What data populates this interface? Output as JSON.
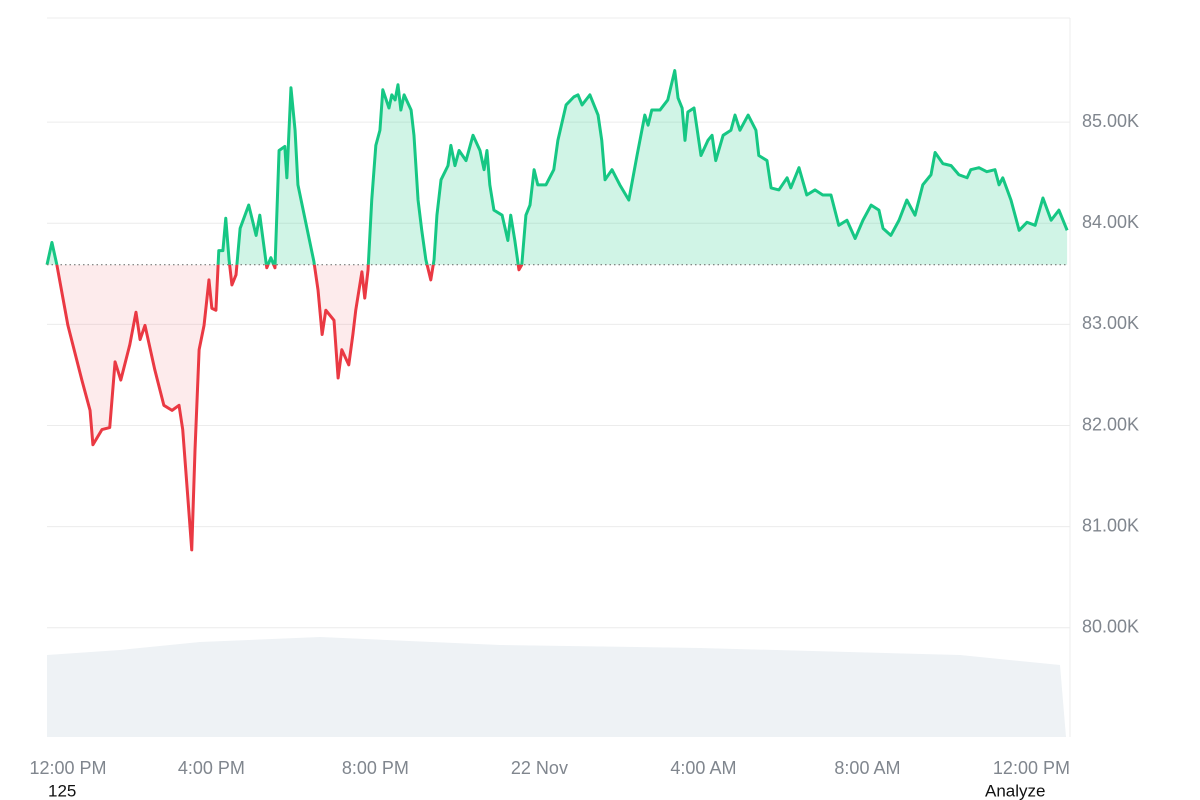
{
  "chart_data": {
    "type": "line",
    "x": [
      11.49,
      11.61,
      11.73,
      12.0,
      12.34,
      12.54,
      12.61,
      12.83,
      13.02,
      13.15,
      13.29,
      13.51,
      13.66,
      13.76,
      13.88,
      14.12,
      14.34,
      14.54,
      14.71,
      14.8,
      14.93,
      15.02,
      15.1,
      15.2,
      15.32,
      15.44,
      15.51,
      15.61,
      15.68,
      15.78,
      15.85,
      15.93,
      16.0,
      16.1,
      16.2,
      16.41,
      16.59,
      16.68,
      16.85,
      16.95,
      17.05,
      17.15,
      17.29,
      17.34,
      17.44,
      17.54,
      17.61,
      17.8,
      18.0,
      18.1,
      18.2,
      18.29,
      18.49,
      18.59,
      18.68,
      18.85,
      18.95,
      19.02,
      19.17,
      19.24,
      19.32,
      19.41,
      19.51,
      19.61,
      19.68,
      19.83,
      19.9,
      19.98,
      20.05,
      20.12,
      20.2,
      20.37,
      20.44,
      20.54,
      20.63,
      20.73,
      20.85,
      20.93,
      21.0,
      21.1,
      21.27,
      21.34,
      21.44,
      21.54,
      21.71,
      21.88,
      22.05,
      22.15,
      22.22,
      22.29,
      22.39,
      22.59,
      22.73,
      22.8,
      22.9,
      23.0,
      23.07,
      23.17,
      23.27,
      23.37,
      23.46,
      23.66,
      23.85,
      23.95,
      24.15,
      24.34,
      24.44,
      24.54,
      24.73,
      24.93,
      25.02,
      25.1,
      25.27,
      25.46,
      25.68,
      25.88,
      26.07,
      26.15,
      26.24,
      26.44,
      26.63,
      26.8,
      26.88,
      26.98,
      27.05,
      27.12,
      27.27,
      27.44,
      27.61,
      27.71,
      27.8,
      27.98,
      28.17,
      28.27,
      28.39,
      28.59,
      28.78,
      28.85,
      29.05,
      29.15,
      29.34,
      29.54,
      29.63,
      29.83,
      30.02,
      30.22,
      30.41,
      30.61,
      30.8,
      31.0,
      31.2,
      31.39,
      31.59,
      31.78,
      31.88,
      32.07,
      32.27,
      32.46,
      32.66,
      32.85,
      33.05,
      33.15,
      33.34,
      33.54,
      33.73,
      33.93,
      34.02,
      34.22,
      34.41,
      34.61,
      34.71,
      34.8,
      35.0,
      35.2,
      35.39,
      35.59,
      35.78,
      35.98,
      36.17,
      36.37
    ],
    "values": [
      83590,
      83810,
      83590,
      82990,
      82450,
      82150,
      81810,
      81960,
      81980,
      82630,
      82450,
      82800,
      83120,
      82850,
      82990,
      82550,
      82200,
      82150,
      82200,
      81960,
      81260,
      80770,
      81760,
      82750,
      82990,
      83440,
      83160,
      83140,
      83730,
      83730,
      84050,
      83640,
      83390,
      83490,
      83950,
      84180,
      83880,
      84080,
      83560,
      83660,
      83560,
      84720,
      84760,
      84450,
      85340,
      84920,
      84380,
      84010,
      83620,
      83340,
      82900,
      83140,
      83040,
      82470,
      82750,
      82600,
      82900,
      83140,
      83520,
      83260,
      83540,
      84230,
      84770,
      84920,
      85320,
      85140,
      85270,
      85220,
      85370,
      85120,
      85270,
      85120,
      84870,
      84230,
      83930,
      83640,
      83440,
      83640,
      84080,
      84430,
      84570,
      84770,
      84570,
      84720,
      84620,
      84870,
      84720,
      84530,
      84720,
      84380,
      84130,
      84080,
      83830,
      84080,
      83830,
      83540,
      83590,
      84080,
      84180,
      84530,
      84380,
      84380,
      84530,
      84820,
      85170,
      85250,
      85270,
      85170,
      85270,
      85070,
      84820,
      84430,
      84530,
      84380,
      84230,
      84670,
      85070,
      84970,
      85120,
      85120,
      85220,
      85510,
      85240,
      85140,
      84820,
      85100,
      85140,
      84670,
      84820,
      84870,
      84620,
      84870,
      84920,
      85070,
      84920,
      85070,
      84920,
      84670,
      84620,
      84350,
      84330,
      84450,
      84350,
      84550,
      84280,
      84330,
      84280,
      84280,
      83980,
      84030,
      83850,
      84030,
      84180,
      84130,
      83950,
      83880,
      84030,
      84230,
      84080,
      84380,
      84480,
      84700,
      84590,
      84570,
      84480,
      84450,
      84530,
      84550,
      84510,
      84530,
      84380,
      84450,
      84230,
      83930,
      84010,
      83980,
      84250,
      84030,
      84130,
      83930
    ],
    "baseline": 83590,
    "up_color": "#16c784",
    "down_color": "#ea3943",
    "xlim": [
      11.49,
      36.44
    ],
    "ylim": [
      78920,
      86030
    ],
    "xticks": [
      {
        "value": 11.5,
        "label": "12:00 PM"
      },
      {
        "value": 15.5,
        "label": "4:00 PM"
      },
      {
        "value": 19.5,
        "label": "8:00 PM"
      },
      {
        "value": 23.5,
        "label": "22 Nov"
      },
      {
        "value": 27.5,
        "label": "4:00 AM"
      },
      {
        "value": 31.5,
        "label": "8:00 AM"
      },
      {
        "value": 35.5,
        "label": "12:00 PM"
      }
    ],
    "yticks": [
      {
        "value": 80000,
        "label": "80.00K"
      },
      {
        "value": 81000,
        "label": "81.00K"
      },
      {
        "value": 82000,
        "label": "82.00K"
      },
      {
        "value": 83000,
        "label": "83.00K"
      },
      {
        "value": 84000,
        "label": "84.00K"
      },
      {
        "value": 85000,
        "label": "85.00K"
      }
    ],
    "grid": true
  },
  "footer": {
    "left": "125",
    "right": "Analyze"
  }
}
